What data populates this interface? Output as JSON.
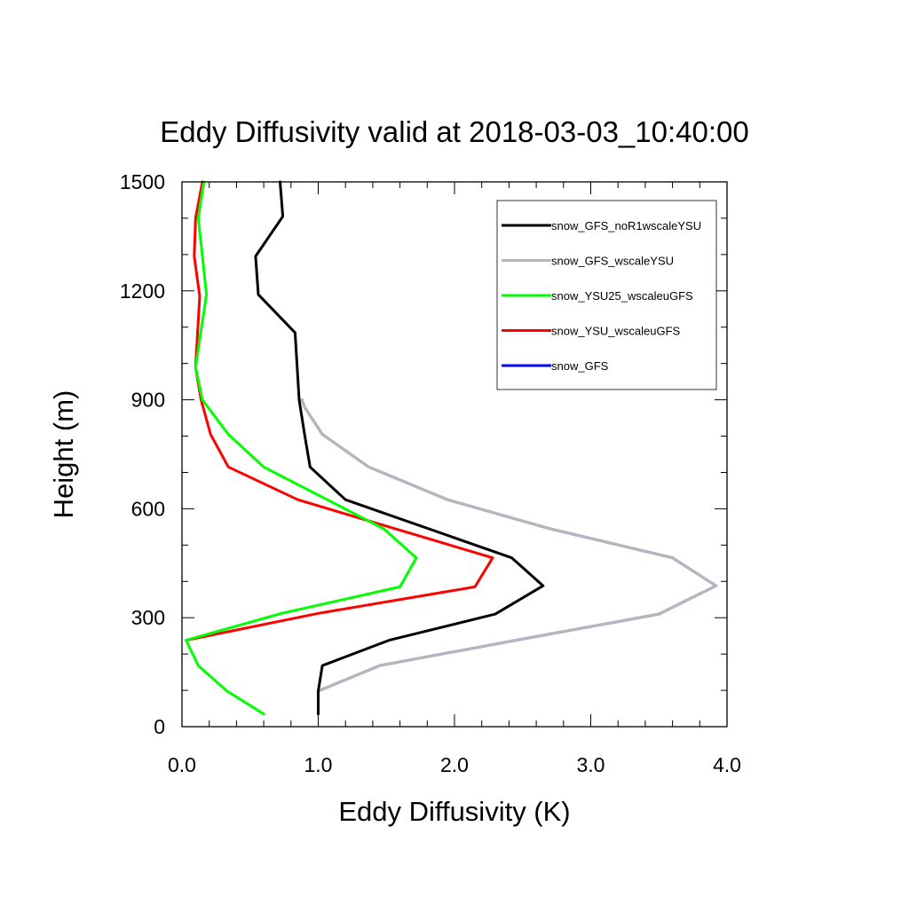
{
  "chart_data": {
    "type": "line",
    "title": "Eddy Diffusivity valid at 2018-03-03_10:40:00",
    "xlabel": "Eddy Diffusivity (K)",
    "ylabel": "Height (m)",
    "xlim": [
      0,
      4
    ],
    "ylim": [
      0,
      1500
    ],
    "x_ticks": [
      0,
      1,
      2,
      3,
      4
    ],
    "x_tick_labels": [
      "0.0",
      "1.0",
      "2.0",
      "3.0",
      "4.0"
    ],
    "y_ticks": [
      0,
      300,
      600,
      900,
      1200,
      1500
    ],
    "y_tick_labels": [
      "0",
      "300",
      "600",
      "900",
      "1200",
      "1500"
    ],
    "grid": false,
    "legend_position": "top-right",
    "series": [
      {
        "name": "snow_GFS",
        "color": "#0000ff",
        "x": [
          1.0,
          1.45,
          2.45,
          3.5,
          3.92,
          3.6,
          2.7,
          1.95,
          1.37,
          1.03,
          0.9,
          0.88
        ],
        "y": [
          98,
          168,
          238,
          310,
          388,
          465,
          545,
          625,
          715,
          805,
          880,
          900
        ]
      },
      {
        "name": "snow_GFS_wscaleYSU",
        "color": "#b8b8b8",
        "x": [
          1.0,
          1.45,
          2.45,
          3.5,
          3.92,
          3.6,
          2.7,
          1.95,
          1.37,
          1.03,
          0.9,
          0.88
        ],
        "y": [
          98,
          168,
          238,
          310,
          388,
          465,
          545,
          625,
          715,
          805,
          880,
          900
        ]
      },
      {
        "name": "snow_YSU_wscaleuGFS",
        "color": "#ff0000",
        "x": [
          0.03,
          1.0,
          2.15,
          2.28,
          0.85,
          0.34,
          0.21,
          0.14,
          0.1,
          0.13,
          0.09,
          0.1,
          0.15
        ],
        "y": [
          238,
          312,
          385,
          465,
          625,
          715,
          805,
          900,
          990,
          1185,
          1295,
          1400,
          1500
        ]
      },
      {
        "name": "snow_YSU25_wscaleuGFS",
        "color": "#00ff00",
        "x": [
          0.6,
          0.33,
          0.12,
          0.03,
          0.73,
          1.6,
          1.72,
          1.48,
          0.6,
          0.34,
          0.15,
          0.1,
          0.18,
          0.12,
          0.16
        ],
        "y": [
          35,
          98,
          168,
          238,
          312,
          385,
          465,
          545,
          715,
          805,
          900,
          990,
          1190,
          1400,
          1500
        ]
      },
      {
        "name": "snow_GFS_noR1wscaleYSU",
        "color": "#000000",
        "x": [
          1.0,
          1.0,
          1.03,
          1.52,
          2.3,
          2.65,
          2.42,
          1.2,
          0.94,
          0.9,
          0.86,
          0.83,
          0.56,
          0.54,
          0.74,
          0.72
        ],
        "y": [
          35,
          98,
          168,
          238,
          310,
          388,
          465,
          625,
          715,
          805,
          900,
          1085,
          1190,
          1295,
          1405,
          1500
        ]
      }
    ],
    "legend_items": [
      {
        "name": "snow_GFS_noR1wscaleYSU",
        "color": "#000000"
      },
      {
        "name": "snow_GFS_wscaleYSU",
        "color": "#b8b8b8"
      },
      {
        "name": "snow_YSU25_wscaleuGFS",
        "color": "#00ff00"
      },
      {
        "name": "snow_YSU_wscaleuGFS",
        "color": "#ff0000"
      },
      {
        "name": "snow_GFS",
        "color": "#0000ff"
      }
    ]
  }
}
